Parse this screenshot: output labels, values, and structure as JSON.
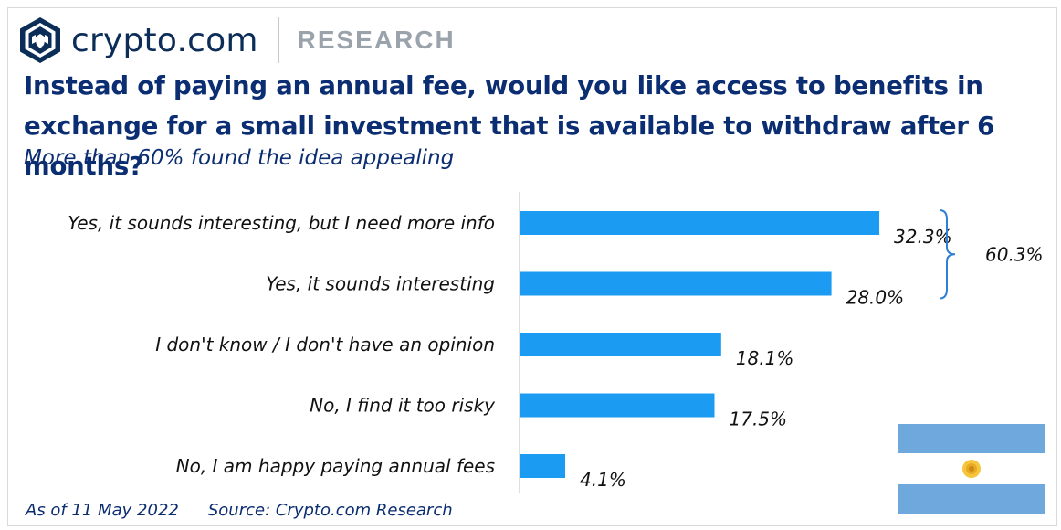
{
  "header": {
    "brand": "crypto.com",
    "section": "RESEARCH"
  },
  "chart_data": {
    "type": "bar",
    "orientation": "horizontal",
    "title": "Instead of paying an annual fee, would you like access to benefits in exchange for a small investment that is available to withdraw after 6 months?",
    "subtitle": "More than 60% found the idea appealing",
    "categories": [
      "Yes, it sounds interesting, but I need more info",
      "Yes, it sounds interesting",
      "I don't know / I don't have an opinion",
      "No, I find it too risky",
      "No, I am happy paying annual fees"
    ],
    "values": [
      32.3,
      28.0,
      18.1,
      17.5,
      4.1
    ],
    "value_labels": [
      "32.3%",
      "28.0%",
      "18.1%",
      "17.5%",
      "4.1%"
    ],
    "bracket_annotation": {
      "spans_categories": [
        0,
        1
      ],
      "label": "60.3%"
    },
    "xlim": [
      0,
      60
    ],
    "grid": false,
    "bar_color": "#1b9cf2"
  },
  "footer": {
    "date": "As of 11 May 2022",
    "source": "Source: Crypto.com Research"
  },
  "flag": {
    "name": "argentina-flag",
    "stripe_color": "#6fa8dc",
    "sun_color": "#f1b82d"
  }
}
